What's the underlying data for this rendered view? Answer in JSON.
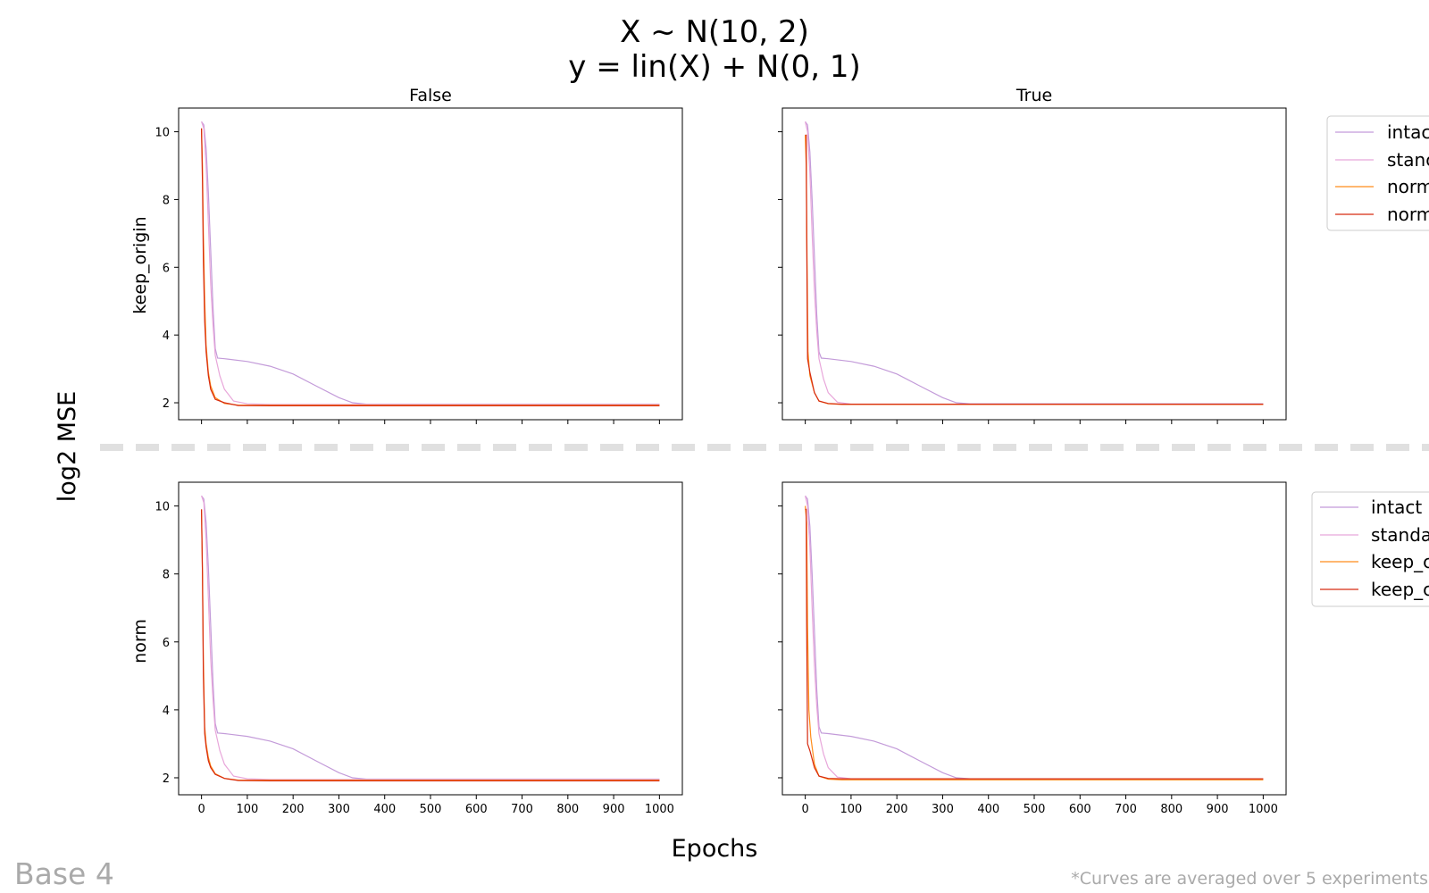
{
  "figure": {
    "title_line1": "X ~ N(10, 2)",
    "title_line2": "y = lin(X) + N(0, 1)",
    "column_titles": [
      "False",
      "True"
    ],
    "row_labels": [
      "keep_origin",
      "norm"
    ],
    "ylabel": "log2 MSE",
    "xlabel": "Epochs",
    "base_label": "Base 4",
    "footnote": "*Curves are averaged over 5 experiments"
  },
  "legends": [
    {
      "entries": [
        "intac",
        "stanc",
        "norm",
        "norm"
      ]
    },
    {
      "entries": [
        "intact",
        "standa",
        "keep_c",
        "keep_c"
      ]
    }
  ],
  "colors": {
    "intact": "#c39bd9",
    "standard": "#e8a6da",
    "orange": "#ff8c1a",
    "red": "#d62a10",
    "divider": "#e0e0e0",
    "footnote": "#aaaaaa"
  },
  "chart_data": {
    "type": "line",
    "xlim": [
      -50,
      1050
    ],
    "ylim": [
      1.5,
      10.7
    ],
    "xticks": [
      0,
      100,
      200,
      300,
      400,
      500,
      600,
      700,
      800,
      900,
      1000
    ],
    "yticks": [
      2,
      4,
      6,
      8,
      10
    ],
    "panels": [
      {
        "row": "keep_origin",
        "column": "False",
        "series": [
          {
            "color_key": "intact",
            "points": [
              [
                0,
                10.3
              ],
              [
                5,
                10.2
              ],
              [
                10,
                9.5
              ],
              [
                15,
                8.2
              ],
              [
                20,
                6.5
              ],
              [
                25,
                4.8
              ],
              [
                30,
                3.6
              ],
              [
                35,
                3.32
              ],
              [
                50,
                3.3
              ],
              [
                100,
                3.22
              ],
              [
                150,
                3.08
              ],
              [
                200,
                2.85
              ],
              [
                250,
                2.5
              ],
              [
                300,
                2.15
              ],
              [
                330,
                2.0
              ],
              [
                360,
                1.96
              ],
              [
                1000,
                1.96
              ]
            ]
          },
          {
            "color_key": "standard",
            "points": [
              [
                0,
                10.3
              ],
              [
                5,
                10.1
              ],
              [
                10,
                9.0
              ],
              [
                15,
                7.3
              ],
              [
                20,
                5.5
              ],
              [
                25,
                4.3
              ],
              [
                30,
                3.4
              ],
              [
                40,
                2.8
              ],
              [
                50,
                2.4
              ],
              [
                70,
                2.05
              ],
              [
                100,
                1.97
              ],
              [
                150,
                1.95
              ],
              [
                1000,
                1.95
              ]
            ]
          },
          {
            "color_key": "orange",
            "points": [
              [
                0,
                10.1
              ],
              [
                2,
                9.0
              ],
              [
                4,
                7.0
              ],
              [
                7,
                5.0
              ],
              [
                10,
                3.7
              ],
              [
                15,
                2.9
              ],
              [
                20,
                2.5
              ],
              [
                30,
                2.15
              ],
              [
                50,
                1.98
              ],
              [
                80,
                1.93
              ],
              [
                1000,
                1.93
              ]
            ]
          },
          {
            "color_key": "red",
            "points": [
              [
                0,
                10.1
              ],
              [
                2,
                8.5
              ],
              [
                4,
                6.2
              ],
              [
                7,
                4.4
              ],
              [
                10,
                3.5
              ],
              [
                15,
                2.8
              ],
              [
                20,
                2.4
              ],
              [
                30,
                2.1
              ],
              [
                50,
                2.0
              ],
              [
                80,
                1.92
              ],
              [
                150,
                1.91
              ],
              [
                1000,
                1.91
              ]
            ]
          }
        ]
      },
      {
        "row": "keep_origin",
        "column": "True",
        "series": [
          {
            "color_key": "intact",
            "points": [
              [
                0,
                10.3
              ],
              [
                5,
                10.2
              ],
              [
                10,
                9.4
              ],
              [
                15,
                8.0
              ],
              [
                20,
                6.3
              ],
              [
                25,
                4.6
              ],
              [
                30,
                3.5
              ],
              [
                35,
                3.32
              ],
              [
                50,
                3.3
              ],
              [
                100,
                3.22
              ],
              [
                150,
                3.08
              ],
              [
                200,
                2.85
              ],
              [
                250,
                2.5
              ],
              [
                300,
                2.15
              ],
              [
                330,
                2.0
              ],
              [
                360,
                1.97
              ],
              [
                1000,
                1.97
              ]
            ]
          },
          {
            "color_key": "standard",
            "points": [
              [
                0,
                10.3
              ],
              [
                5,
                10.0
              ],
              [
                10,
                8.8
              ],
              [
                15,
                7.0
              ],
              [
                20,
                5.3
              ],
              [
                25,
                4.1
              ],
              [
                30,
                3.3
              ],
              [
                40,
                2.7
              ],
              [
                50,
                2.3
              ],
              [
                70,
                2.02
              ],
              [
                100,
                1.96
              ],
              [
                1000,
                1.96
              ]
            ]
          },
          {
            "color_key": "orange",
            "points": [
              [
                0,
                9.9
              ],
              [
                2,
                9.0
              ],
              [
                4,
                6.0
              ],
              [
                6,
                3.5
              ],
              [
                10,
                2.8
              ],
              [
                20,
                2.3
              ],
              [
                30,
                2.05
              ],
              [
                50,
                1.97
              ],
              [
                80,
                1.95
              ],
              [
                1000,
                1.95
              ]
            ]
          },
          {
            "color_key": "red",
            "points": [
              [
                0,
                9.9
              ],
              [
                2,
                9.9
              ],
              [
                3,
                7.0
              ],
              [
                5,
                3.3
              ],
              [
                10,
                2.9
              ],
              [
                20,
                2.3
              ],
              [
                30,
                2.05
              ],
              [
                50,
                1.98
              ],
              [
                80,
                1.96
              ],
              [
                1000,
                1.96
              ]
            ]
          }
        ]
      },
      {
        "row": "norm",
        "column": "False",
        "series": [
          {
            "color_key": "intact",
            "points": [
              [
                0,
                10.3
              ],
              [
                5,
                10.2
              ],
              [
                10,
                9.5
              ],
              [
                15,
                8.2
              ],
              [
                20,
                6.5
              ],
              [
                25,
                4.8
              ],
              [
                30,
                3.6
              ],
              [
                35,
                3.32
              ],
              [
                50,
                3.3
              ],
              [
                100,
                3.22
              ],
              [
                150,
                3.08
              ],
              [
                200,
                2.85
              ],
              [
                250,
                2.5
              ],
              [
                300,
                2.15
              ],
              [
                330,
                2.0
              ],
              [
                360,
                1.96
              ],
              [
                1000,
                1.96
              ]
            ]
          },
          {
            "color_key": "standard",
            "points": [
              [
                0,
                10.3
              ],
              [
                5,
                10.1
              ],
              [
                10,
                9.0
              ],
              [
                15,
                7.3
              ],
              [
                20,
                5.5
              ],
              [
                25,
                4.3
              ],
              [
                30,
                3.4
              ],
              [
                40,
                2.8
              ],
              [
                50,
                2.4
              ],
              [
                70,
                2.05
              ],
              [
                100,
                1.97
              ],
              [
                150,
                1.95
              ],
              [
                1000,
                1.95
              ]
            ]
          },
          {
            "color_key": "orange",
            "points": [
              [
                0,
                9.9
              ],
              [
                2,
                8.0
              ],
              [
                4,
                5.5
              ],
              [
                7,
                3.5
              ],
              [
                10,
                3.0
              ],
              [
                15,
                2.6
              ],
              [
                20,
                2.35
              ],
              [
                30,
                2.12
              ],
              [
                50,
                1.98
              ],
              [
                80,
                1.93
              ],
              [
                1000,
                1.93
              ]
            ]
          },
          {
            "color_key": "red",
            "points": [
              [
                0,
                9.9
              ],
              [
                2,
                8.0
              ],
              [
                4,
                5.0
              ],
              [
                7,
                3.3
              ],
              [
                10,
                2.9
              ],
              [
                15,
                2.5
              ],
              [
                20,
                2.3
              ],
              [
                30,
                2.1
              ],
              [
                50,
                1.98
              ],
              [
                80,
                1.92
              ],
              [
                150,
                1.91
              ],
              [
                1000,
                1.91
              ]
            ]
          }
        ]
      },
      {
        "row": "norm",
        "column": "True",
        "series": [
          {
            "color_key": "intact",
            "points": [
              [
                0,
                10.3
              ],
              [
                5,
                10.2
              ],
              [
                10,
                9.4
              ],
              [
                15,
                8.0
              ],
              [
                20,
                6.3
              ],
              [
                25,
                4.6
              ],
              [
                30,
                3.5
              ],
              [
                35,
                3.32
              ],
              [
                50,
                3.3
              ],
              [
                100,
                3.22
              ],
              [
                150,
                3.08
              ],
              [
                200,
                2.85
              ],
              [
                250,
                2.5
              ],
              [
                300,
                2.15
              ],
              [
                330,
                2.0
              ],
              [
                360,
                1.97
              ],
              [
                1000,
                1.97
              ]
            ]
          },
          {
            "color_key": "standard",
            "points": [
              [
                0,
                10.3
              ],
              [
                5,
                10.0
              ],
              [
                10,
                8.8
              ],
              [
                15,
                7.0
              ],
              [
                20,
                5.3
              ],
              [
                25,
                4.1
              ],
              [
                30,
                3.3
              ],
              [
                40,
                2.7
              ],
              [
                50,
                2.3
              ],
              [
                70,
                2.02
              ],
              [
                100,
                1.97
              ],
              [
                1000,
                1.97
              ]
            ]
          },
          {
            "color_key": "orange",
            "points": [
              [
                0,
                10.0
              ],
              [
                3,
                9.5
              ],
              [
                5,
                6.5
              ],
              [
                8,
                4.0
              ],
              [
                12,
                3.2
              ],
              [
                20,
                2.4
              ],
              [
                30,
                2.05
              ],
              [
                50,
                1.96
              ],
              [
                80,
                1.94
              ],
              [
                1000,
                1.94
              ]
            ]
          },
          {
            "color_key": "red",
            "points": [
              [
                0,
                9.9
              ],
              [
                2,
                9.9
              ],
              [
                3,
                6.5
              ],
              [
                5,
                3.0
              ],
              [
                10,
                2.8
              ],
              [
                20,
                2.3
              ],
              [
                30,
                2.05
              ],
              [
                50,
                1.98
              ],
              [
                80,
                1.97
              ],
              [
                1000,
                1.97
              ]
            ]
          }
        ]
      }
    ]
  }
}
